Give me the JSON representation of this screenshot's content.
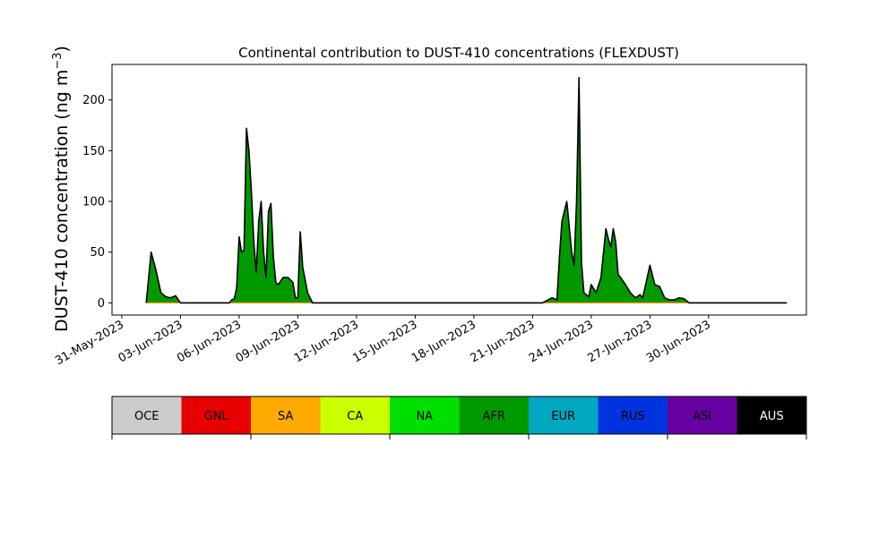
{
  "chart_data": {
    "type": "area",
    "title": "Continental contribution to DUST-410 concentrations (FLEXDUST)",
    "ylabel_main": "DUST-410 concentration (ng m",
    "ylabel_sup": "−3",
    "ylabel_close": ")",
    "xlim": [
      "2023-05-30T12:00",
      "2023-07-05T00:00"
    ],
    "ylim": [
      -12,
      235
    ],
    "yticks": [
      0,
      50,
      100,
      150,
      200
    ],
    "xticks": [
      {
        "date": "2023-05-31",
        "label": "31-May-2023"
      },
      {
        "date": "2023-06-03",
        "label": "03-Jun-2023"
      },
      {
        "date": "2023-06-06",
        "label": "06-Jun-2023"
      },
      {
        "date": "2023-06-09",
        "label": "09-Jun-2023"
      },
      {
        "date": "2023-06-12",
        "label": "12-Jun-2023"
      },
      {
        "date": "2023-06-15",
        "label": "15-Jun-2023"
      },
      {
        "date": "2023-06-18",
        "label": "18-Jun-2023"
      },
      {
        "date": "2023-06-21",
        "label": "21-Jun-2023"
      },
      {
        "date": "2023-06-24",
        "label": "24-Jun-2023"
      },
      {
        "date": "2023-06-27",
        "label": "27-Jun-2023"
      },
      {
        "date": "2023-06-30",
        "label": "30-Jun-2023"
      }
    ],
    "x": [
      "2023-06-01T06:00",
      "2023-06-01T06:00",
      "2023-06-01T12:00",
      "2023-06-01T18:00",
      "2023-06-02T00:00",
      "2023-06-02T06:00",
      "2023-06-02T12:00",
      "2023-06-02T18:00",
      "2023-06-03T00:00",
      "2023-06-03T06:00",
      "2023-06-03T12:00",
      "2023-06-03T18:00",
      "2023-06-04T00:00",
      "2023-06-04T12:00",
      "2023-06-05T00:00",
      "2023-06-05T06:00",
      "2023-06-05T12:00",
      "2023-06-05T15:00",
      "2023-06-05T18:00",
      "2023-06-05T21:00",
      "2023-06-06T00:00",
      "2023-06-06T03:00",
      "2023-06-06T06:00",
      "2023-06-06T09:00",
      "2023-06-06T12:00",
      "2023-06-06T15:00",
      "2023-06-06T18:00",
      "2023-06-06T21:00",
      "2023-06-07T00:00",
      "2023-06-07T03:00",
      "2023-06-07T06:00",
      "2023-06-07T09:00",
      "2023-06-07T12:00",
      "2023-06-07T15:00",
      "2023-06-07T18:00",
      "2023-06-07T21:00",
      "2023-06-08T00:00",
      "2023-06-08T06:00",
      "2023-06-08T12:00",
      "2023-06-08T18:00",
      "2023-06-08T21:00",
      "2023-06-09T00:00",
      "2023-06-09T03:00",
      "2023-06-09T06:00",
      "2023-06-09T12:00",
      "2023-06-09T18:00",
      "2023-06-10T00:00",
      "2023-06-10T12:00",
      "2023-06-11T00:00",
      "2023-06-12T00:00",
      "2023-06-13T00:00",
      "2023-06-14T00:00",
      "2023-06-15T00:00",
      "2023-06-15T12:00",
      "2023-06-16T00:00",
      "2023-06-18T00:00",
      "2023-06-20T00:00",
      "2023-06-21T00:00",
      "2023-06-21T12:00",
      "2023-06-22T00:00",
      "2023-06-22T06:00",
      "2023-06-22T09:00",
      "2023-06-22T12:00",
      "2023-06-22T18:00",
      "2023-06-23T00:00",
      "2023-06-23T03:00",
      "2023-06-23T06:00",
      "2023-06-23T09:00",
      "2023-06-23T12:00",
      "2023-06-23T15:00",
      "2023-06-23T18:00",
      "2023-06-23T21:00",
      "2023-06-24T00:00",
      "2023-06-24T06:00",
      "2023-06-24T12:00",
      "2023-06-24T18:00",
      "2023-06-24T21:00",
      "2023-06-25T00:00",
      "2023-06-25T03:00",
      "2023-06-25T06:00",
      "2023-06-25T09:00",
      "2023-06-25T12:00",
      "2023-06-25T18:00",
      "2023-06-26T00:00",
      "2023-06-26T06:00",
      "2023-06-26T12:00",
      "2023-06-26T15:00",
      "2023-06-26T18:00",
      "2023-06-27T00:00",
      "2023-06-27T06:00",
      "2023-06-27T12:00",
      "2023-06-27T18:00",
      "2023-06-28T00:00",
      "2023-06-28T06:00",
      "2023-06-28T12:00",
      "2023-06-28T18:00",
      "2023-06-29T00:00",
      "2023-06-29T12:00",
      "2023-06-30T00:00",
      "2023-07-01T00:00",
      "2023-07-01T12:00",
      "2023-07-02T00:00",
      "2023-07-03T00:00",
      "2023-07-04T00:00"
    ],
    "series": [
      {
        "name": "AFR",
        "color": "#009a00",
        "values": [
          0,
          0,
          50,
          32,
          10,
          6,
          5,
          7,
          0,
          0,
          0,
          0,
          0,
          0,
          0,
          0,
          0,
          3,
          4,
          15,
          65,
          50,
          52,
          172,
          150,
          110,
          60,
          30,
          80,
          100,
          50,
          25,
          90,
          98,
          45,
          20,
          18,
          25,
          25,
          20,
          5,
          5,
          70,
          35,
          10,
          0,
          0,
          0,
          0,
          0,
          0,
          0,
          0,
          0,
          0,
          0,
          0,
          0,
          0,
          5,
          3,
          45,
          80,
          100,
          50,
          37,
          100,
          222,
          40,
          10,
          8,
          6,
          18,
          10,
          25,
          73,
          63,
          55,
          73,
          60,
          28,
          25,
          18,
          10,
          5,
          8,
          5,
          15,
          37,
          18,
          16,
          5,
          3,
          3,
          5,
          4,
          0,
          0,
          0,
          0,
          0,
          0,
          0,
          0
        ]
      },
      {
        "name": "AUS",
        "color": "#000000",
        "values": [
          0,
          0,
          50,
          32,
          10,
          6,
          5,
          7,
          0,
          0,
          0,
          0,
          0,
          0,
          0,
          0,
          0,
          3,
          4,
          15,
          65,
          50,
          52,
          172,
          150,
          110,
          60,
          30,
          80,
          100,
          50,
          25,
          90,
          98,
          45,
          20,
          18,
          25,
          25,
          20,
          5,
          5,
          70,
          35,
          10,
          0,
          0,
          0,
          0,
          0,
          0,
          0,
          0,
          0,
          0,
          0,
          0,
          0,
          0,
          5,
          3,
          45,
          80,
          100,
          50,
          37,
          100,
          222,
          40,
          10,
          8,
          6,
          18,
          10,
          25,
          73,
          63,
          55,
          73,
          60,
          28,
          25,
          18,
          10,
          5,
          8,
          5,
          15,
          37,
          18,
          16,
          5,
          3,
          3,
          5,
          4,
          0,
          0,
          0,
          0,
          0,
          0,
          0,
          0
        ]
      }
    ],
    "legend": [
      {
        "label": "OCE",
        "color": "#cccccc",
        "text_color": "#000000"
      },
      {
        "label": "GNL",
        "color": "#e60000",
        "text_color": "#000000"
      },
      {
        "label": "SA",
        "color": "#ffaa00",
        "text_color": "#000000"
      },
      {
        "label": "CA",
        "color": "#ccff00",
        "text_color": "#000000"
      },
      {
        "label": "NA",
        "color": "#00e000",
        "text_color": "#000000"
      },
      {
        "label": "AFR",
        "color": "#009a00",
        "text_color": "#000000"
      },
      {
        "label": "EUR",
        "color": "#00a7c0",
        "text_color": "#000000"
      },
      {
        "label": "RUS",
        "color": "#0033e0",
        "text_color": "#000000"
      },
      {
        "label": "ASI",
        "color": "#6600a0",
        "text_color": "#000000"
      },
      {
        "label": "AUS",
        "color": "#000000",
        "text_color": "#ffffff"
      }
    ],
    "legend_placement": "below",
    "grid": false
  }
}
